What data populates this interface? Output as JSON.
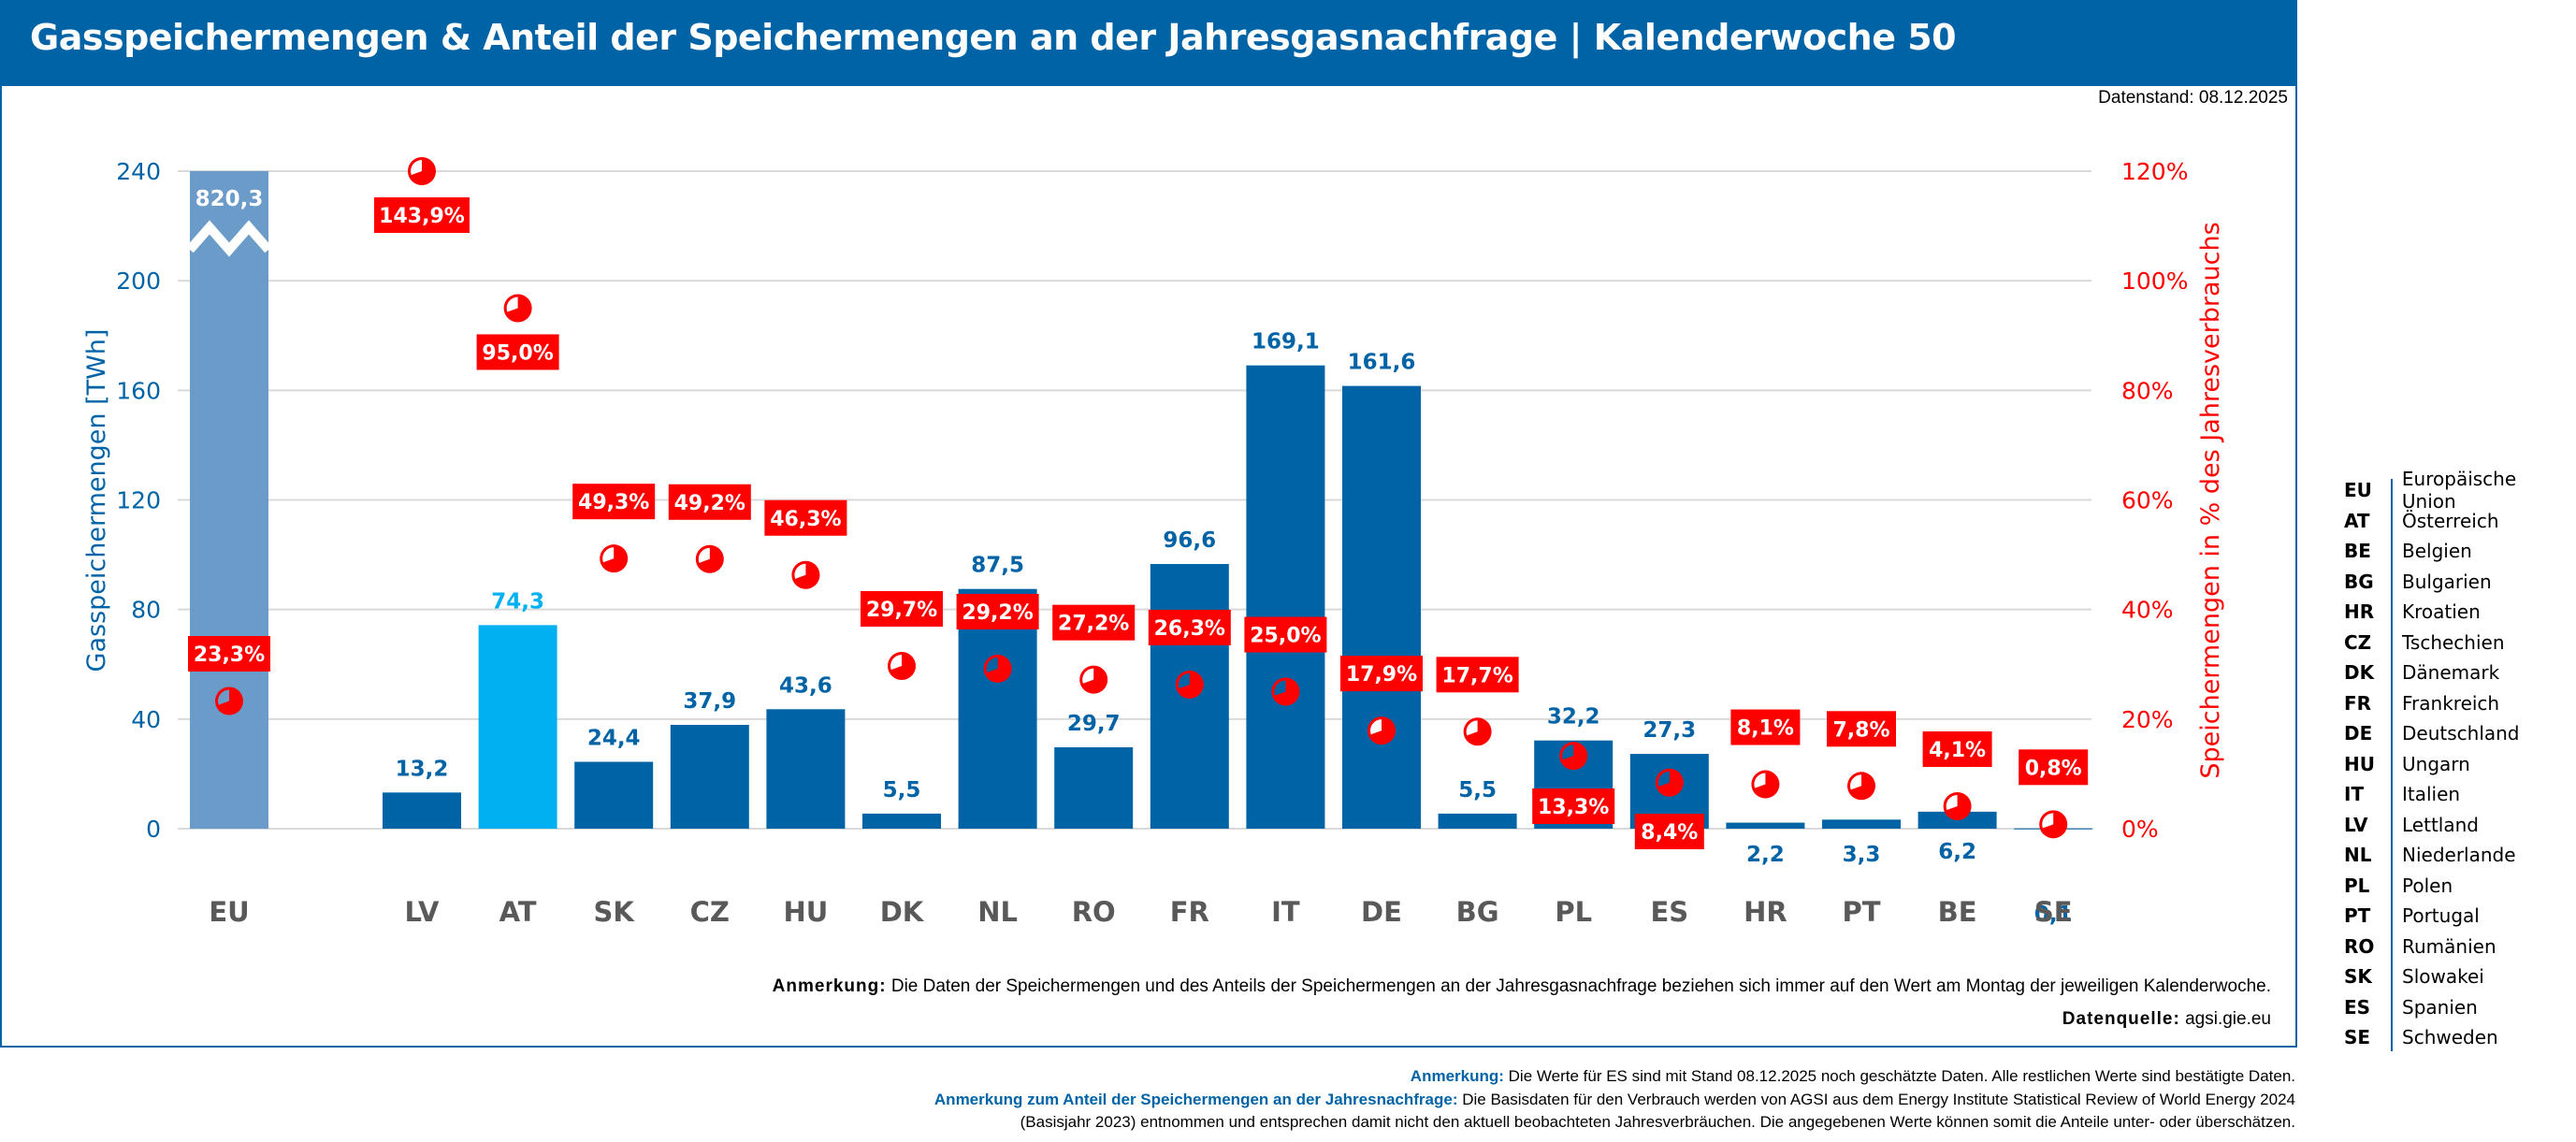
{
  "header": {
    "title": "Gasspeichermengen & Anteil der Speichermengen an der Jahresgasnachfrage | Kalenderwoche 50",
    "datenstand": "Datenstand: 08.12.2025"
  },
  "colors": {
    "header_bg": "#0063a6",
    "bar": "#0063a6",
    "bar_eu": "#6a9bc9",
    "bar_at": "#00b0f0",
    "percent": "#ff0000",
    "axis_left": "#0063a6",
    "axis_right": "#ff0000",
    "category": "#595959"
  },
  "chart_data": {
    "type": "bar",
    "title": "Gasspeichermengen & Anteil der Speichermengen an der Jahresgasnachfrage | Kalenderwoche 50",
    "categories": [
      "EU",
      "LV",
      "AT",
      "SK",
      "CZ",
      "HU",
      "DK",
      "NL",
      "RO",
      "FR",
      "IT",
      "DE",
      "BG",
      "PL",
      "ES",
      "HR",
      "PT",
      "BE",
      "SE"
    ],
    "series": [
      {
        "name": "Gasspeichermengen [TWh]",
        "axis": "left",
        "values": [
          820.3,
          13.2,
          74.3,
          24.4,
          37.9,
          43.6,
          5.5,
          87.5,
          29.7,
          96.6,
          169.1,
          161.6,
          5.5,
          32.2,
          27.3,
          2.2,
          3.3,
          6.2,
          0.1
        ],
        "labels": [
          "820,3",
          "13,2",
          "74,3",
          "24,4",
          "37,9",
          "43,6",
          "5,5",
          "87,5",
          "29,7",
          "96,6",
          "169,1",
          "161,6",
          "5,5",
          "32,2",
          "27,3",
          "2,2",
          "3,3",
          "6,2",
          "0,1"
        ],
        "axis_break": {
          "category": "EU",
          "note": "bar truncated at 240"
        }
      },
      {
        "name": "Speichermengen in % des Jahresverbrauchs",
        "axis": "right",
        "type": "scatter",
        "values": [
          23.3,
          143.9,
          95.0,
          49.3,
          49.2,
          46.3,
          29.7,
          29.2,
          27.2,
          26.3,
          25.0,
          17.9,
          17.7,
          13.3,
          8.4,
          8.1,
          7.8,
          4.1,
          0.8
        ],
        "labels": [
          "23,3%",
          "143,9%",
          "95,0%",
          "49,3%",
          "49,2%",
          "46,3%",
          "29,7%",
          "29,2%",
          "27,2%",
          "26,3%",
          "25,0%",
          "17,9%",
          "17,7%",
          "13,3%",
          "8,4%",
          "8,1%",
          "7,8%",
          "4,1%",
          "0,8%"
        ],
        "marker": "pie-chart-icon"
      }
    ],
    "ylabel": "Gasspeichermengen [TWh]",
    "ylabel_right": "Speichermengen in % des Jahresverbrauchs",
    "ylim": [
      0,
      240
    ],
    "ylim_right": [
      0,
      120
    ],
    "yticks": [
      "0",
      "40",
      "80",
      "120",
      "160",
      "200",
      "240"
    ],
    "yticks_right": [
      "0%",
      "20%",
      "40%",
      "60%",
      "80%",
      "100%",
      "120%"
    ],
    "grid": true,
    "legend": "right"
  },
  "notes": {
    "anmerkung_label": "Anmerkung:",
    "anmerkung_text": "Die Daten der Speichermengen und des Anteils der Speichermengen an der Jahresgasnachfrage beziehen sich immer auf den Wert am Montag der jeweiligen Kalenderwoche.",
    "datenquelle_label": "Datenquelle:",
    "datenquelle_text": "agsi.gie.eu"
  },
  "footer": {
    "line1_label": "Anmerkung:",
    "line1_text": "Die Werte für ES sind mit Stand 08.12.2025 noch geschätzte Daten. Alle restlichen Werte sind bestätigte Daten.",
    "line2_label": "Anmerkung zum Anteil der Speichermengen an der Jahresnachfrage:",
    "line2_text": "Die Basisdaten für den Verbrauch werden von AGSI aus dem  Energy Institute Statistical Review of World Energy 2024",
    "line3_text": "(Basisjahr 2023) entnommen und entsprechen damit nicht den aktuell beobachteten Jahresverbräuchen. Die angegebenen Werte können somit die Anteile unter- oder überschätzen."
  },
  "legend": [
    {
      "code": "EU",
      "name": "Europäische Union"
    },
    {
      "code": "AT",
      "name": "Österreich"
    },
    {
      "code": "BE",
      "name": "Belgien"
    },
    {
      "code": "BG",
      "name": "Bulgarien"
    },
    {
      "code": "HR",
      "name": "Kroatien"
    },
    {
      "code": "CZ",
      "name": "Tschechien"
    },
    {
      "code": "DK",
      "name": "Dänemark"
    },
    {
      "code": "FR",
      "name": "Frankreich"
    },
    {
      "code": "DE",
      "name": "Deutschland"
    },
    {
      "code": "HU",
      "name": "Ungarn"
    },
    {
      "code": "IT",
      "name": "Italien"
    },
    {
      "code": "LV",
      "name": "Lettland"
    },
    {
      "code": "NL",
      "name": "Niederlande"
    },
    {
      "code": "PL",
      "name": "Polen"
    },
    {
      "code": "PT",
      "name": "Portugal"
    },
    {
      "code": "RO",
      "name": "Rumänien"
    },
    {
      "code": "SK",
      "name": "Slowakei"
    },
    {
      "code": "ES",
      "name": "Spanien"
    },
    {
      "code": "SE",
      "name": "Schweden"
    }
  ]
}
